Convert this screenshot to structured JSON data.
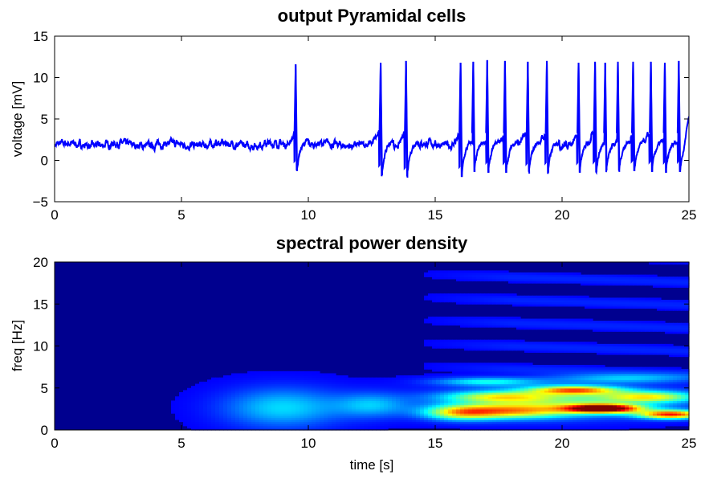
{
  "chart_data": [
    {
      "type": "line",
      "title": "output Pyramidal cells",
      "xlabel": "",
      "ylabel": "voltage [mV]",
      "xlim": [
        0,
        25
      ],
      "ylim": [
        -5,
        15
      ],
      "xticks": [
        0,
        5,
        10,
        15,
        20,
        25
      ],
      "yticks": [
        -5,
        0,
        5,
        10,
        15
      ],
      "line_color": "#0000ff",
      "baseline_mV": 1.9,
      "series": [
        {
          "spike_times": [
            9.5,
            12.85,
            13.85,
            16.0,
            16.5,
            17.05,
            17.75,
            18.65,
            19.4,
            20.65,
            21.3,
            21.7,
            22.2,
            22.8,
            23.5,
            24.05,
            24.6
          ],
          "spike_peaks": [
            11.6,
            11.8,
            12.0,
            11.8,
            11.9,
            12.1,
            12.0,
            11.9,
            12.0,
            11.8,
            11.9,
            11.8,
            11.9,
            11.9,
            11.9,
            11.8,
            12.0
          ],
          "spike_troughs": [
            -1.3,
            -1.8,
            -2.1,
            -2.0,
            -1.4,
            -1.5,
            -1.5,
            -1.6,
            -1.5,
            -1.5,
            -1.4,
            -1.2,
            -1.4,
            -1.3,
            -1.4,
            -1.5,
            -1.4
          ],
          "end_value": 5.3
        }
      ]
    },
    {
      "type": "heatmap",
      "title": "spectral power density",
      "xlabel": "time [s]",
      "ylabel": "freq [Hz]",
      "xlim": [
        0,
        25
      ],
      "ylim": [
        0,
        20
      ],
      "xticks": [
        0,
        5,
        10,
        15,
        20,
        25
      ],
      "yticks": [
        0,
        5,
        10,
        15,
        20
      ],
      "colormap": "jet",
      "background_color": "#00008f",
      "blobs": [
        {
          "t": 9.0,
          "f": 2.7,
          "st": 1.6,
          "sf": 1.6,
          "amp": 0.22
        },
        {
          "t": 12.5,
          "f": 3.0,
          "st": 1.0,
          "sf": 1.0,
          "amp": 0.18
        },
        {
          "t": 16.0,
          "f": 2.1,
          "st": 1.0,
          "sf": 0.6,
          "amp": 0.4
        },
        {
          "t": 18.0,
          "f": 2.3,
          "st": 1.6,
          "sf": 0.6,
          "amp": 0.45
        },
        {
          "t": 17.5,
          "f": 4.0,
          "st": 1.5,
          "sf": 0.45,
          "amp": 0.35
        },
        {
          "t": 17.0,
          "f": 5.8,
          "st": 1.4,
          "sf": 0.35,
          "amp": 0.25
        },
        {
          "t": 21.6,
          "f": 2.6,
          "st": 1.0,
          "sf": 0.35,
          "amp": 0.95
        },
        {
          "t": 24.3,
          "f": 1.9,
          "st": 0.9,
          "sf": 0.35,
          "amp": 0.7
        },
        {
          "t": 20.5,
          "f": 4.8,
          "st": 1.2,
          "sf": 0.35,
          "amp": 0.55
        },
        {
          "t": 23.5,
          "f": 4.0,
          "st": 1.3,
          "sf": 0.45,
          "amp": 0.4
        },
        {
          "t": 22.5,
          "f": 6.2,
          "st": 2.0,
          "sf": 0.4,
          "amp": 0.2
        },
        {
          "t": 20.0,
          "f": 3.4,
          "st": 3.0,
          "sf": 1.2,
          "amp": 0.3
        }
      ]
    }
  ]
}
